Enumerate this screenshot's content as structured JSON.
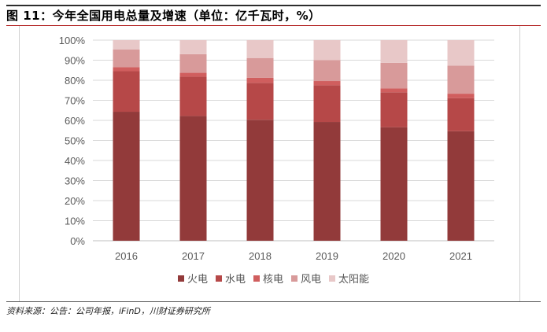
{
  "title": "图 11：今年全国用电总量及增速（单位：亿千瓦时，%）",
  "source": "资料来源：公告：公司年报，iFinD，川财证券研究所",
  "chart_data": {
    "type": "bar",
    "stacked": true,
    "categories": [
      "2016",
      "2017",
      "2018",
      "2019",
      "2020",
      "2021"
    ],
    "y_ticks": [
      "0%",
      "10%",
      "20%",
      "30%",
      "40%",
      "50%",
      "60%",
      "70%",
      "80%",
      "90%",
      "100%"
    ],
    "ylim": [
      0,
      100
    ],
    "grid": true,
    "legend_position": "bottom",
    "series": [
      {
        "name": "火电",
        "color": "#923a3a",
        "values": [
          64.3,
          62.2,
          60.3,
          59.2,
          56.6,
          54.6
        ]
      },
      {
        "name": "水电",
        "color": "#b64848",
        "values": [
          20.2,
          19.6,
          18.4,
          18.3,
          17.4,
          16.5
        ]
      },
      {
        "name": "核电",
        "color": "#d05e5e",
        "values": [
          2.0,
          1.9,
          2.5,
          2.1,
          1.9,
          2.2
        ]
      },
      {
        "name": "风电",
        "color": "#d89a9a",
        "values": [
          8.9,
          9.3,
          9.9,
          10.4,
          12.8,
          14.0
        ]
      },
      {
        "name": "太阳能",
        "color": "#e8c8c8",
        "values": [
          4.6,
          7.0,
          8.9,
          10.0,
          11.3,
          12.7
        ]
      }
    ]
  }
}
